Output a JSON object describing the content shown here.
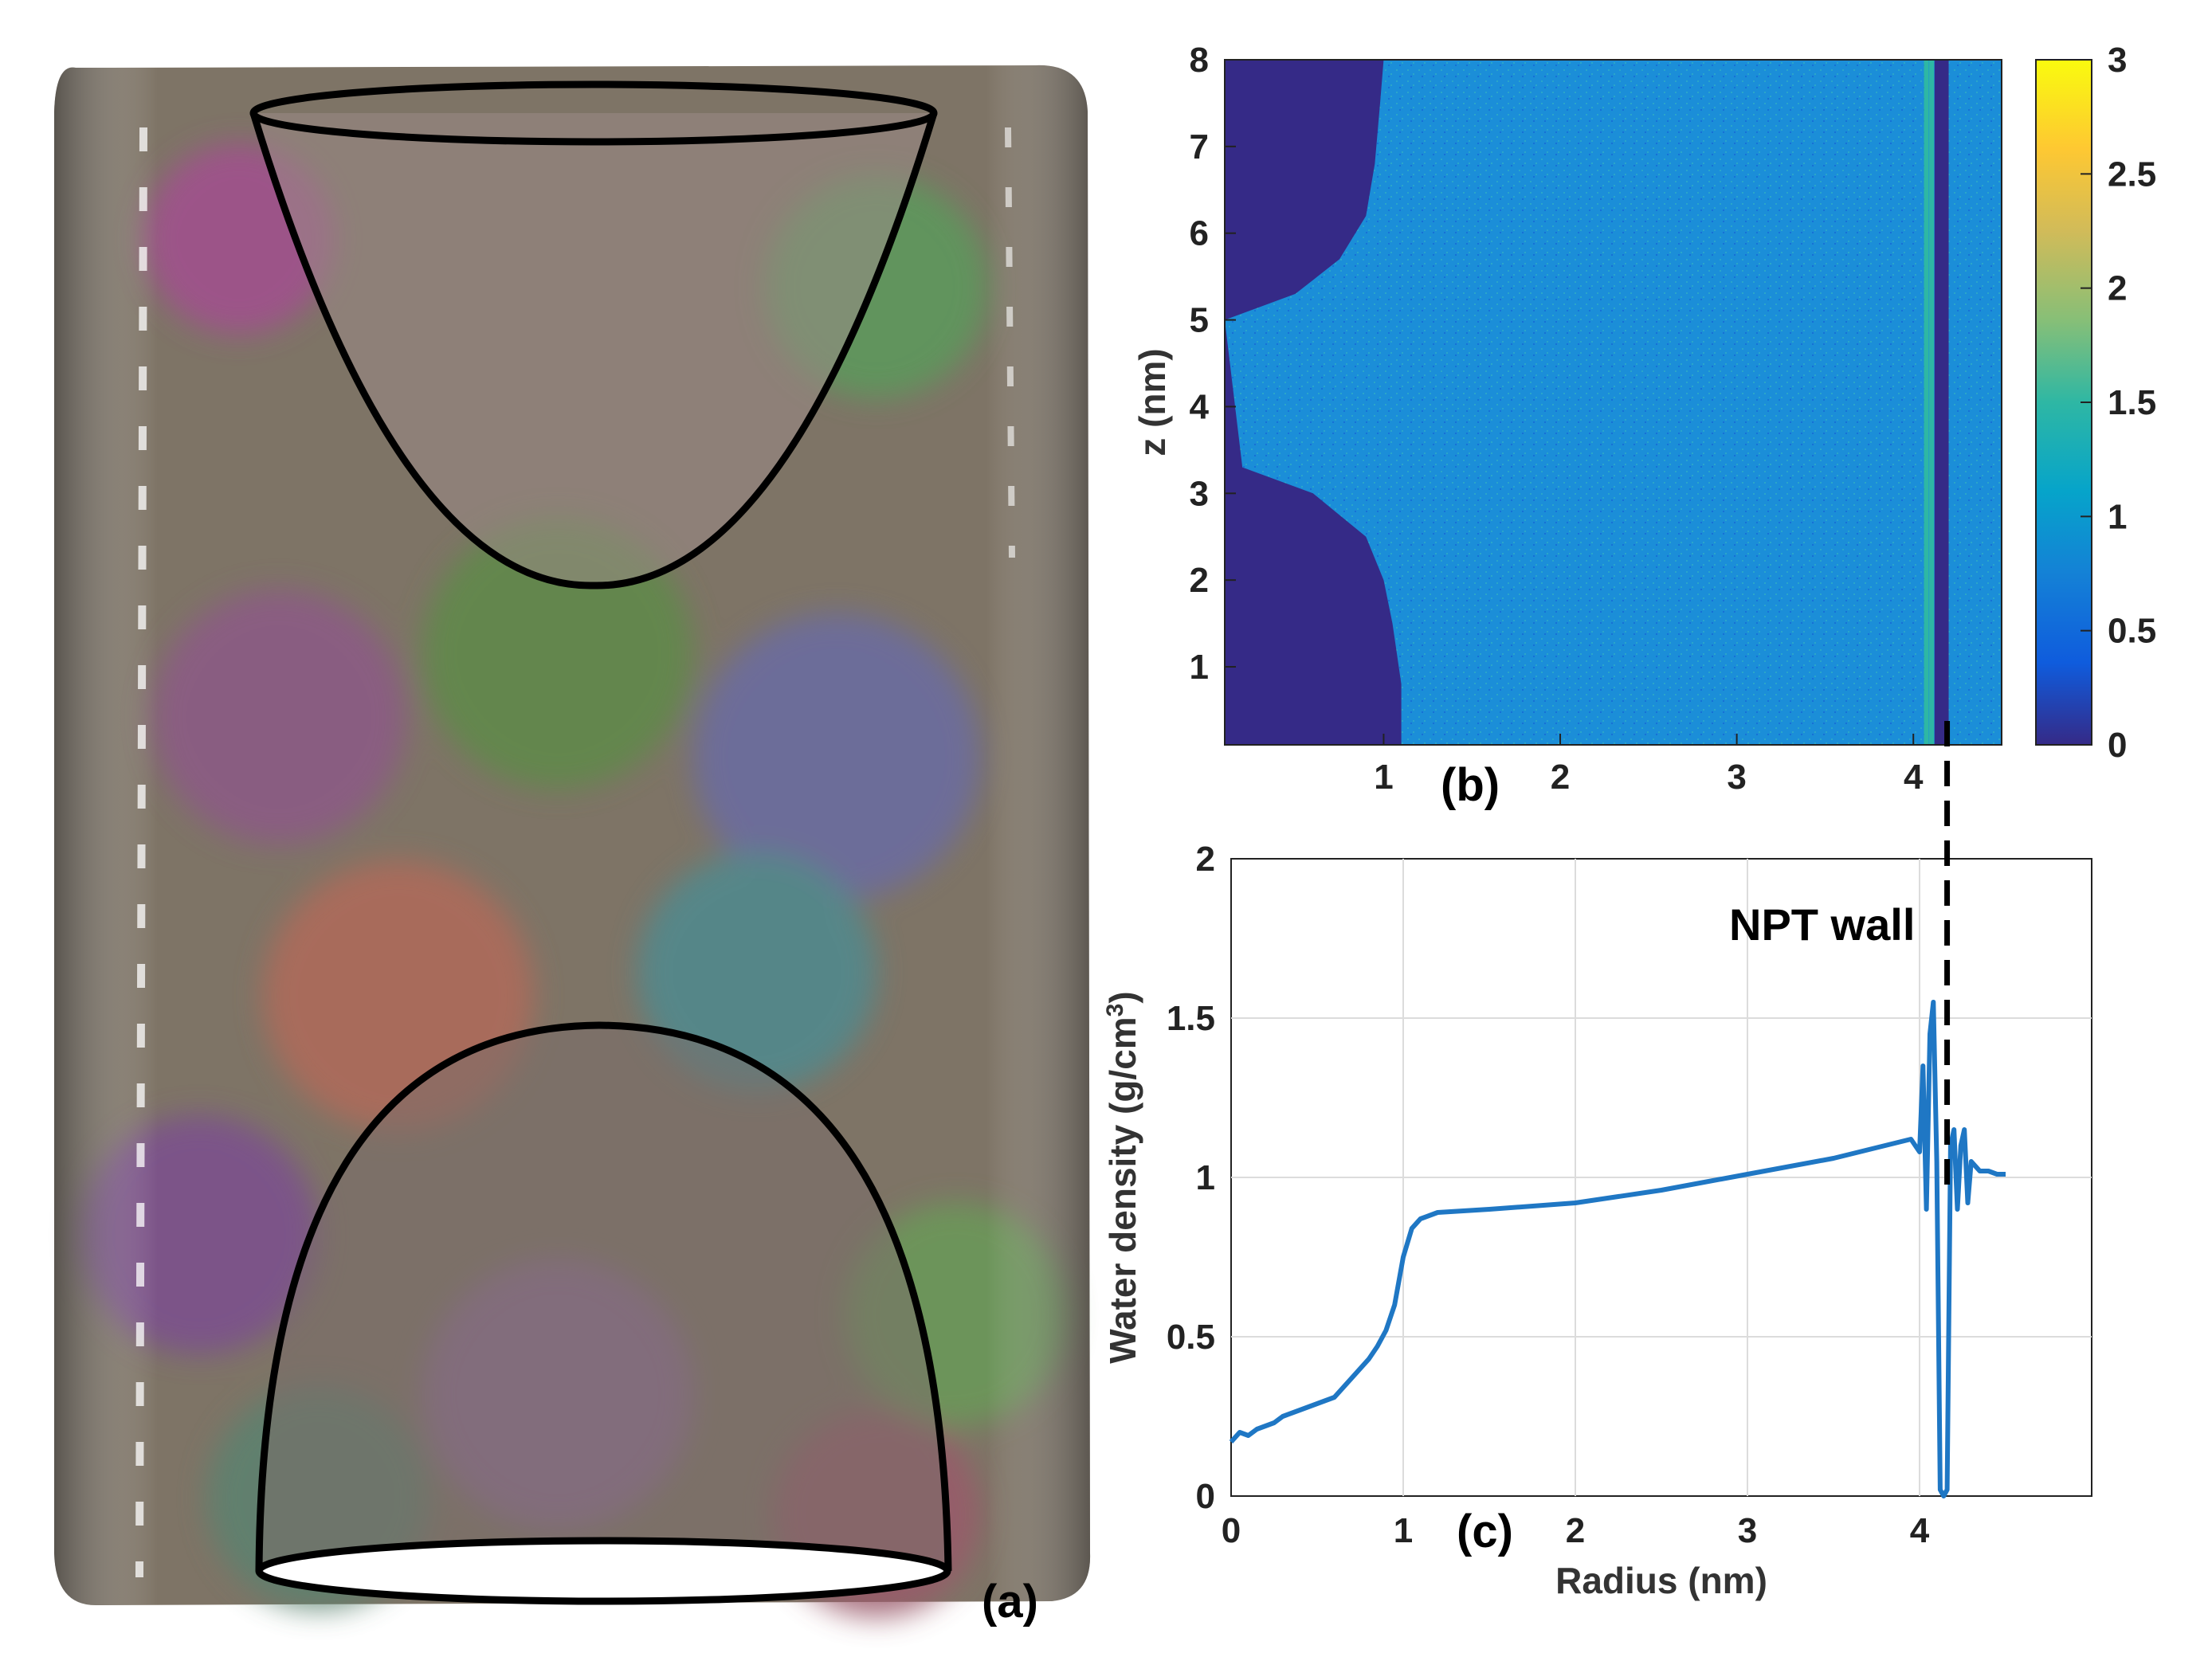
{
  "figure": {
    "panel_labels": {
      "a": "(a)",
      "b": "(b)",
      "c": "(c)"
    },
    "annotation": "NPT wall"
  },
  "colors": {
    "parula_low": "#352a87",
    "parula_mid": "#1b8ed8",
    "parula_high": "#f9fb0e",
    "line": "#1f77c4",
    "grid": "#dcdcdc"
  },
  "chart_data": [
    {
      "id": "heatmap_b",
      "type": "heatmap",
      "title": "",
      "xlabel": "",
      "ylabel": "z (nm)",
      "xlim": [
        0.1,
        4.5
      ],
      "ylim": [
        0.1,
        8.0
      ],
      "x_ticks": [
        "1",
        "2",
        "3",
        "4"
      ],
      "y_ticks": [
        "1",
        "2",
        "3",
        "4",
        "5",
        "6",
        "7",
        "8"
      ],
      "colorbar": {
        "min": 0,
        "max": 3,
        "ticks": [
          "0",
          "0.5",
          "1",
          "1.5",
          "2",
          "2.5",
          "3"
        ]
      },
      "background_value": 0.85,
      "excluded_cone_boundary_radius": [
        {
          "z": 0.1,
          "r": 1.1
        },
        {
          "z": 0.8,
          "r": 1.1
        },
        {
          "z": 1.5,
          "r": 1.05
        },
        {
          "z": 2.0,
          "r": 1.0
        },
        {
          "z": 2.5,
          "r": 0.9
        },
        {
          "z": 3.0,
          "r": 0.6
        },
        {
          "z": 3.3,
          "r": 0.2
        },
        {
          "z": 5.0,
          "r": 0.1
        },
        {
          "z": 5.3,
          "r": 0.5
        },
        {
          "z": 5.7,
          "r": 0.75
        },
        {
          "z": 6.2,
          "r": 0.9
        },
        {
          "z": 6.8,
          "r": 0.95
        },
        {
          "z": 7.5,
          "r": 0.98
        },
        {
          "z": 8.0,
          "r": 1.0
        }
      ],
      "wall": {
        "r_start": 4.12,
        "r_end": 4.2,
        "value": 0.0
      },
      "high_density_stripes": [
        4.06,
        4.09
      ]
    },
    {
      "id": "line_c",
      "type": "line",
      "title": "",
      "xlabel": "Radius (nm)",
      "ylabel": "Water density (g/cm",
      "ylabel_sup": "3",
      "ylabel_close": ")",
      "xlim": [
        0,
        5
      ],
      "ylim": [
        0,
        2
      ],
      "x_ticks": [
        "0",
        "1",
        "2",
        "3",
        "4"
      ],
      "y_ticks": [
        "0",
        "0.5",
        "1",
        "1.5",
        "2"
      ],
      "grid": true,
      "series": [
        {
          "name": "Water density",
          "x": [
            0.0,
            0.05,
            0.1,
            0.15,
            0.2,
            0.25,
            0.3,
            0.4,
            0.5,
            0.6,
            0.65,
            0.7,
            0.75,
            0.8,
            0.85,
            0.9,
            0.95,
            1.0,
            1.05,
            1.1,
            1.2,
            1.5,
            2.0,
            2.5,
            3.0,
            3.5,
            3.8,
            3.95,
            4.0,
            4.02,
            4.04,
            4.06,
            4.08,
            4.1,
            4.12,
            4.14,
            4.16,
            4.18,
            4.2,
            4.22,
            4.24,
            4.26,
            4.28,
            4.3,
            4.35,
            4.4,
            4.45,
            4.5
          ],
          "values": [
            0.17,
            0.2,
            0.19,
            0.21,
            0.22,
            0.23,
            0.25,
            0.27,
            0.29,
            0.31,
            0.34,
            0.37,
            0.4,
            0.43,
            0.47,
            0.52,
            0.6,
            0.75,
            0.84,
            0.87,
            0.89,
            0.9,
            0.92,
            0.96,
            1.01,
            1.06,
            1.1,
            1.12,
            1.08,
            1.35,
            0.9,
            1.45,
            1.55,
            1.05,
            0.02,
            0.0,
            0.02,
            1.1,
            1.15,
            0.9,
            1.1,
            1.15,
            0.92,
            1.05,
            1.02,
            1.02,
            1.01,
            1.01
          ]
        }
      ],
      "npt_wall_x": 4.16
    }
  ]
}
